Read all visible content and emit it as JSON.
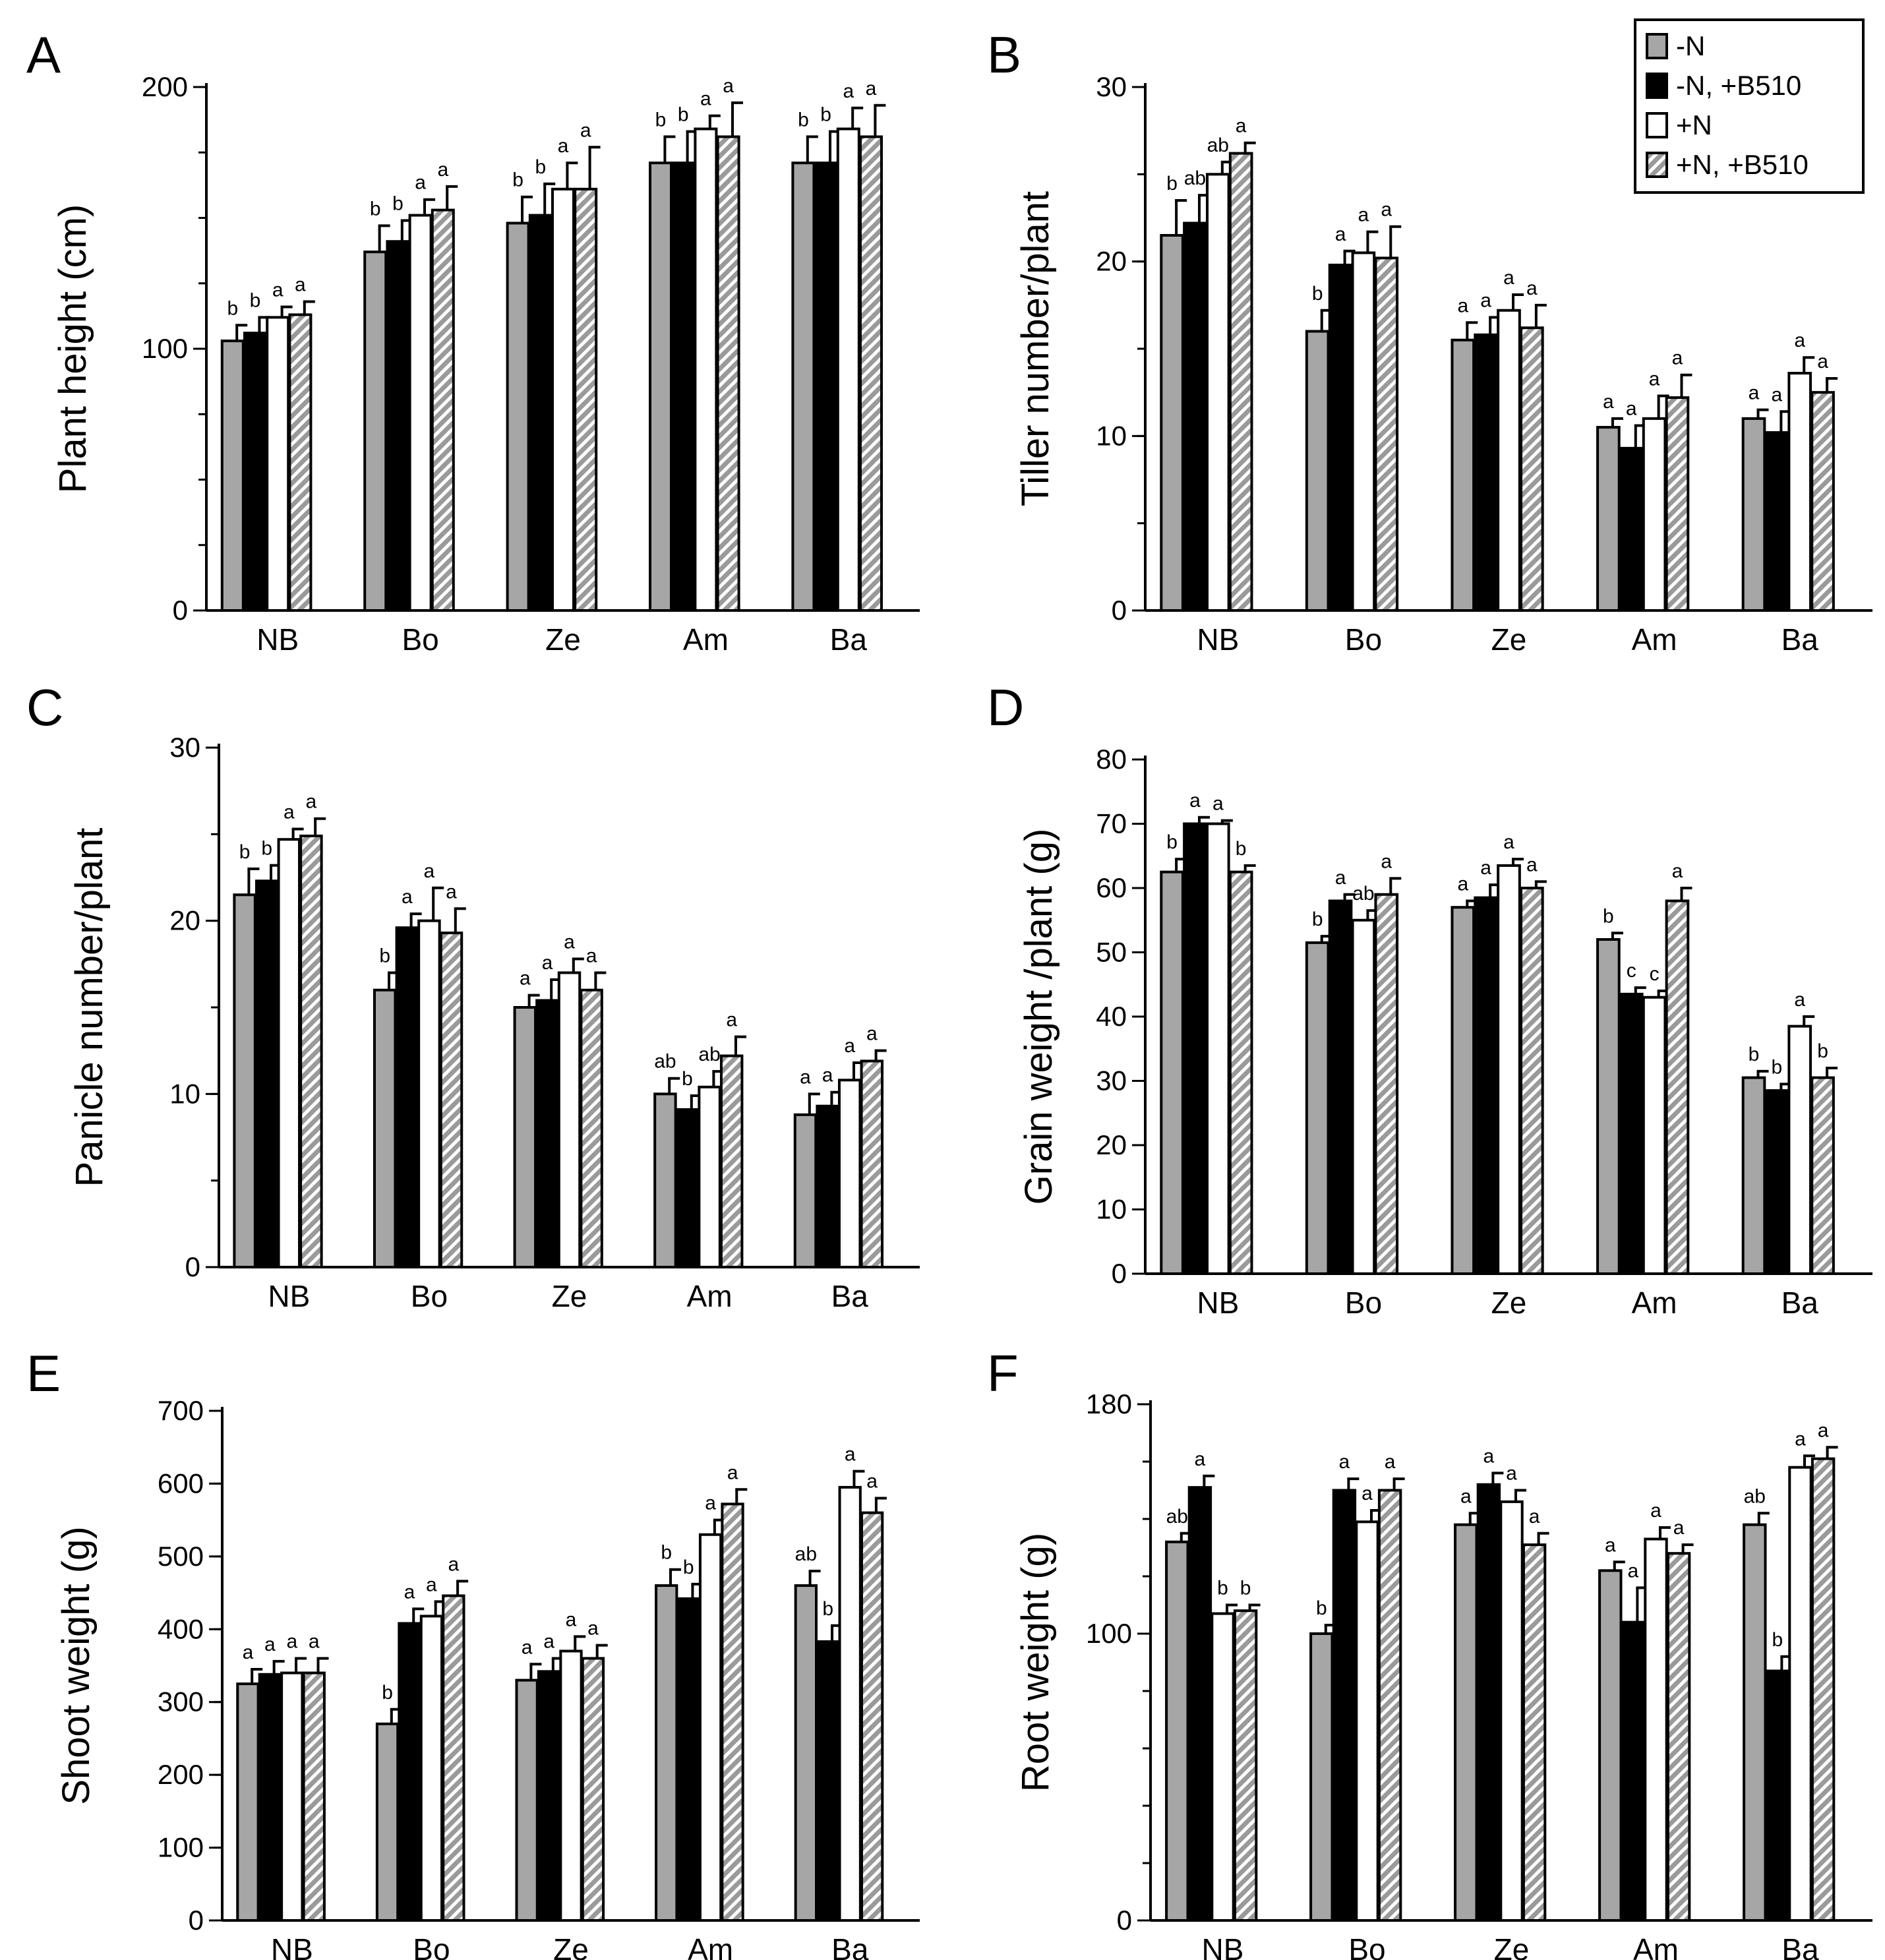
{
  "colors": {
    "minus_n": "#a6a6a6",
    "minus_n_b510": "#000000",
    "plus_n": "#ffffff",
    "plus_n_b510": "hatched-gray"
  },
  "legend": {
    "placement": "top-right",
    "entries": [
      "-N",
      "-N, +B510",
      "+N",
      "+N, +B510"
    ]
  },
  "chart_data": [
    {
      "type": "bar",
      "panel": "A",
      "ylabel": "Plant height (cm)",
      "ylim": [
        0,
        200
      ],
      "yticks": [
        "0",
        "100",
        "200"
      ],
      "minor_step": 25,
      "categories": [
        "NB",
        "Bo",
        "Ze",
        "Am",
        "Ba"
      ],
      "series": [
        {
          "name": "-N",
          "values": [
            103,
            137,
            148,
            171,
            171
          ],
          "errors": [
            6,
            10,
            10,
            10,
            10
          ],
          "letters": [
            "b",
            "b",
            "b",
            "b",
            "b"
          ]
        },
        {
          "name": "-N, +B510",
          "values": [
            106,
            141,
            151,
            171,
            171
          ],
          "errors": [
            6,
            8,
            12,
            12,
            12
          ],
          "letters": [
            "b",
            "b",
            "b",
            "b",
            "b"
          ]
        },
        {
          "name": "+N",
          "values": [
            112,
            151,
            161,
            184,
            184
          ],
          "errors": [
            4,
            6,
            10,
            5,
            8
          ],
          "letters": [
            "a",
            "a",
            "a",
            "a",
            "a"
          ]
        },
        {
          "name": "+N, +B510",
          "values": [
            113,
            153,
            161,
            181,
            181
          ],
          "errors": [
            5,
            9,
            16,
            13,
            12
          ],
          "letters": [
            "a",
            "a",
            "a",
            "a",
            "a"
          ]
        }
      ]
    },
    {
      "type": "bar",
      "panel": "B",
      "ylabel": "Tiller number/plant",
      "ylim": [
        0,
        30
      ],
      "yticks": [
        "0",
        "10",
        "20",
        "30"
      ],
      "minor_step": 5,
      "categories": [
        "NB",
        "Bo",
        "Ze",
        "Am",
        "Ba"
      ],
      "series": [
        {
          "name": "-N",
          "values": [
            21.5,
            16,
            15.5,
            10.5,
            11
          ],
          "errors": [
            2,
            1.2,
            1,
            0.5,
            0.5
          ],
          "letters": [
            "b",
            "b",
            "a",
            "a",
            "a"
          ]
        },
        {
          "name": "-N, +B510",
          "values": [
            22.2,
            19.8,
            15.8,
            9.3,
            10.2
          ],
          "errors": [
            1.6,
            0.8,
            1,
            1.3,
            1.2
          ],
          "letters": [
            "ab",
            "a",
            "a",
            "a",
            "a"
          ]
        },
        {
          "name": "+N",
          "values": [
            25,
            20.5,
            17.2,
            11,
            13.6
          ],
          "errors": [
            0.7,
            1.2,
            0.9,
            1.3,
            0.9
          ],
          "letters": [
            "ab",
            "a",
            "a",
            "a",
            "a"
          ]
        },
        {
          "name": "+N, +B510",
          "values": [
            26.2,
            20.2,
            16.2,
            12.2,
            12.5
          ],
          "errors": [
            0.6,
            1.8,
            1.3,
            1.3,
            0.8
          ],
          "letters": [
            "a",
            "a",
            "a",
            "a",
            "a"
          ]
        }
      ]
    },
    {
      "type": "bar",
      "panel": "C",
      "ylabel": "Panicle number/plant",
      "ylim": [
        0,
        30
      ],
      "yticks": [
        "0",
        "10",
        "20",
        "30"
      ],
      "minor_step": 5,
      "categories": [
        "NB",
        "Bo",
        "Ze",
        "Am",
        "Ba"
      ],
      "series": [
        {
          "name": "-N",
          "values": [
            21.5,
            16,
            15,
            10,
            8.8
          ],
          "errors": [
            1.5,
            1,
            0.7,
            0.9,
            1.2
          ],
          "letters": [
            "b",
            "b",
            "a",
            "ab",
            "a"
          ]
        },
        {
          "name": "-N, +B510",
          "values": [
            22.3,
            19.6,
            15.4,
            9.1,
            9.3
          ],
          "errors": [
            0.9,
            0.8,
            1.2,
            0.8,
            0.8
          ],
          "letters": [
            "b",
            "a",
            "a",
            "b",
            "a"
          ]
        },
        {
          "name": "+N",
          "values": [
            24.7,
            20,
            17,
            10.4,
            10.8
          ],
          "errors": [
            0.6,
            1.9,
            0.8,
            0.9,
            1
          ],
          "letters": [
            "a",
            "a",
            "a",
            "ab",
            "a"
          ]
        },
        {
          "name": "+N, +B510",
          "values": [
            24.9,
            19.3,
            16,
            12.2,
            11.9
          ],
          "errors": [
            1,
            1.4,
            1,
            1.1,
            0.6
          ],
          "letters": [
            "a",
            "a",
            "a",
            "a",
            "a"
          ]
        }
      ]
    },
    {
      "type": "bar",
      "panel": "D",
      "ylabel": "Grain weight /plant (g)",
      "ylim": [
        0,
        80
      ],
      "yticks": [
        "0",
        "10",
        "20",
        "30",
        "40",
        "50",
        "60",
        "70",
        "80"
      ],
      "minor_step": 10,
      "categories": [
        "NB",
        "Bo",
        "Ze",
        "Am",
        "Ba"
      ],
      "series": [
        {
          "name": "-N",
          "values": [
            62.5,
            51.5,
            57,
            52,
            30.5
          ],
          "errors": [
            2,
            1,
            1,
            1,
            1
          ],
          "letters": [
            "b",
            "b",
            "a",
            "b",
            "b"
          ]
        },
        {
          "name": "-N, +B510",
          "values": [
            70,
            58,
            58.5,
            43.5,
            28.5
          ],
          "errors": [
            1,
            1,
            2,
            1,
            1
          ],
          "letters": [
            "a",
            "a",
            "a",
            "c",
            "b"
          ]
        },
        {
          "name": "+N",
          "values": [
            70,
            55,
            63.5,
            43,
            38.5
          ],
          "errors": [
            0.5,
            1.5,
            1,
            1,
            1.5
          ],
          "letters": [
            "a",
            "ab",
            "a",
            "c",
            "a"
          ]
        },
        {
          "name": "+N, +B510",
          "values": [
            62.5,
            59,
            60,
            58,
            30.5
          ],
          "errors": [
            1,
            2.5,
            1,
            2,
            1.5
          ],
          "letters": [
            "b",
            "a",
            "a",
            "a",
            "b"
          ]
        }
      ]
    },
    {
      "type": "bar",
      "panel": "E",
      "ylabel": "Shoot weight (g)",
      "ylim": [
        0,
        700
      ],
      "yticks": [
        "0",
        "100",
        "200",
        "300",
        "400",
        "500",
        "600",
        "700"
      ],
      "minor_step": 100,
      "categories": [
        "NB",
        "Bo",
        "Ze",
        "Am",
        "Ba"
      ],
      "series": [
        {
          "name": "-N",
          "values": [
            325,
            270,
            330,
            460,
            460
          ],
          "errors": [
            20,
            20,
            22,
            22,
            20
          ],
          "letters": [
            "a",
            "b",
            "a",
            "b",
            "ab"
          ]
        },
        {
          "name": "-N, +B510",
          "values": [
            338,
            408,
            342,
            442,
            383
          ],
          "errors": [
            18,
            20,
            18,
            20,
            22
          ],
          "letters": [
            "a",
            "a",
            "a",
            "b",
            "b"
          ]
        },
        {
          "name": "+N",
          "values": [
            340,
            418,
            370,
            530,
            595
          ],
          "errors": [
            20,
            20,
            20,
            20,
            22
          ],
          "letters": [
            "a",
            "a",
            "a",
            "a",
            "a"
          ]
        },
        {
          "name": "+N, +B510",
          "values": [
            340,
            446,
            360,
            572,
            560
          ],
          "errors": [
            20,
            20,
            18,
            20,
            20
          ],
          "letters": [
            "a",
            "a",
            "a",
            "a",
            "a"
          ]
        }
      ]
    },
    {
      "type": "bar",
      "panel": "F",
      "ylabel": "Root weight (g)",
      "ylim": [
        0,
        180
      ],
      "yticks": [
        "0",
        "100",
        "180"
      ],
      "minor_step": 20,
      "categories": [
        "NB",
        "Bo",
        "Ze",
        "Am",
        "Ba"
      ],
      "series": [
        {
          "name": "-N",
          "values": [
            132,
            100,
            138,
            122,
            138
          ],
          "errors": [
            3,
            3,
            4,
            3,
            4
          ],
          "letters": [
            "ab",
            "b",
            "a",
            "a",
            "ab"
          ]
        },
        {
          "name": "-N, +B510",
          "values": [
            151,
            150,
            152,
            104,
            87
          ],
          "errors": [
            4,
            4,
            4,
            12,
            5
          ],
          "letters": [
            "a",
            "a",
            "a",
            "a",
            "b"
          ]
        },
        {
          "name": "+N",
          "values": [
            107,
            139,
            146,
            133,
            158
          ],
          "errors": [
            3,
            4,
            4,
            4,
            4
          ],
          "letters": [
            "b",
            "a",
            "a",
            "a",
            "a"
          ]
        },
        {
          "name": "+N, +B510",
          "values": [
            108,
            150,
            131,
            128,
            161
          ],
          "errors": [
            2,
            4,
            4,
            3,
            4
          ],
          "letters": [
            "b",
            "a",
            "a",
            "a",
            "a"
          ]
        }
      ]
    }
  ]
}
